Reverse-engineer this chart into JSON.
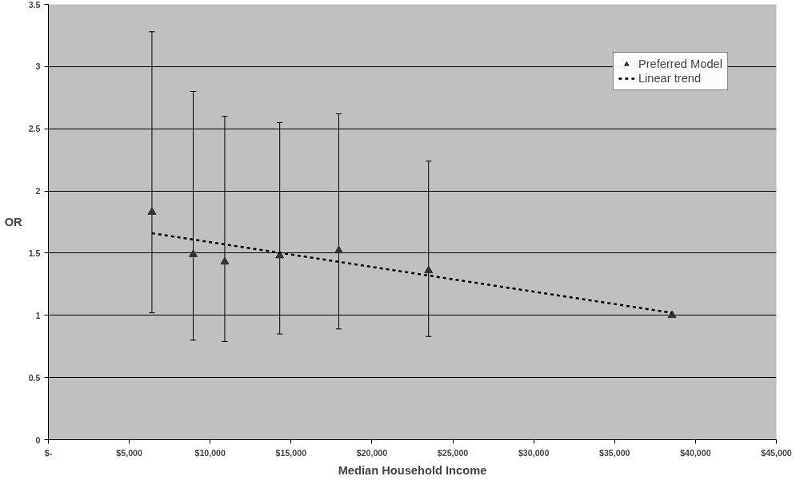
{
  "chart_data": {
    "type": "scatter",
    "xlabel": "Median Household Income",
    "ylabel": "OR",
    "xlim": [
      0,
      45000
    ],
    "ylim": [
      0,
      3.5
    ],
    "xticks": [
      {
        "value": 0,
        "label": "$-"
      },
      {
        "value": 5000,
        "label": "$5,000"
      },
      {
        "value": 10000,
        "label": "$10,000"
      },
      {
        "value": 15000,
        "label": "$15,000"
      },
      {
        "value": 20000,
        "label": "$20,000"
      },
      {
        "value": 25000,
        "label": "$25,000"
      },
      {
        "value": 30000,
        "label": "$30,000"
      },
      {
        "value": 35000,
        "label": "$35,000"
      },
      {
        "value": 40000,
        "label": "$40,000"
      },
      {
        "value": 45000,
        "label": "$45,000"
      }
    ],
    "yticks": [
      0,
      0.5,
      1,
      1.5,
      2,
      2.5,
      3,
      3.5
    ],
    "grid": "y",
    "legend": "top right",
    "series": [
      {
        "name": "Preferred Model",
        "marker": "triangle",
        "color": "#333333",
        "x": [
          6400,
          8950,
          10900,
          14300,
          17950,
          23500,
          38550
        ],
        "values": [
          1.83,
          1.49,
          1.43,
          1.48,
          1.52,
          1.36,
          1.0
        ],
        "errors": [
          [
            1.02,
            3.28
          ],
          [
            0.8,
            2.8
          ],
          [
            0.79,
            2.6
          ],
          [
            0.85,
            2.55
          ],
          [
            0.89,
            2.62
          ],
          [
            0.83,
            2.24
          ],
          null
        ]
      },
      {
        "name": "Linear trend",
        "type": "line",
        "line_style": "dashed",
        "color": "#000000",
        "x": [
          6400,
          38550
        ],
        "values": [
          1.66,
          1.02
        ]
      }
    ]
  }
}
